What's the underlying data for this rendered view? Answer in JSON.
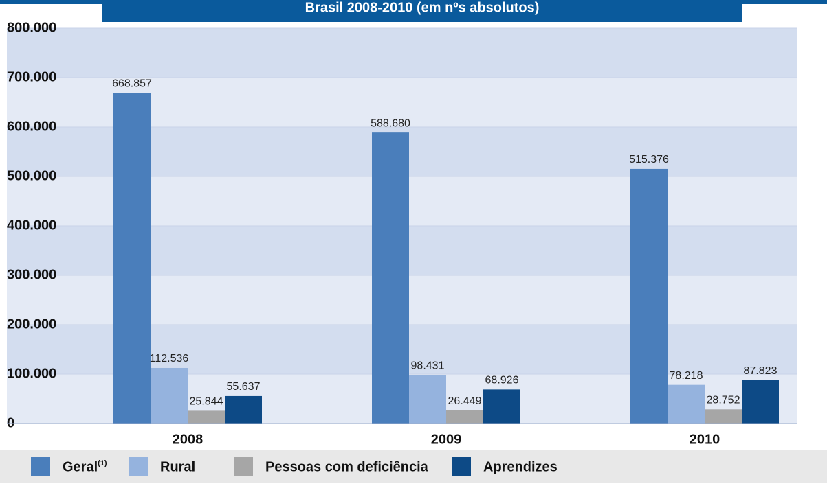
{
  "chart_data": {
    "type": "bar",
    "title": "Brasil 2008-2010 (em nºs absolutos)",
    "categories": [
      "2008",
      "2009",
      "2010"
    ],
    "series": [
      {
        "name": "Geral",
        "note": "(1)",
        "color": "#4a7ebb",
        "values": [
          668857,
          588680,
          515376
        ],
        "value_labels": [
          "668.857",
          "588.680",
          "515.376"
        ]
      },
      {
        "name": "Rural",
        "color": "#95b3de",
        "values": [
          112536,
          98431,
          78218
        ],
        "value_labels": [
          "112.536",
          "98.431",
          "78.218"
        ]
      },
      {
        "name": "Pessoas com deficiência",
        "color": "#a6a6a6",
        "values": [
          25844,
          26449,
          28752
        ],
        "value_labels": [
          "25.844",
          "26.449",
          "28.752"
        ]
      },
      {
        "name": "Aprendizes",
        "color": "#0d4a86",
        "values": [
          55637,
          68926,
          87823
        ],
        "value_labels": [
          "55.637",
          "68.926",
          "87.823"
        ]
      }
    ],
    "ylim": [
      0,
      800000
    ],
    "yticks": [
      0,
      {
        "value": 100000,
        "label": "100.000"
      },
      {
        "value": 200000,
        "label": "200.000"
      },
      {
        "value": 300000,
        "label": "300.000"
      },
      {
        "value": 400000,
        "label": "400.000"
      },
      {
        "value": 500000,
        "label": "500.000"
      },
      {
        "value": 600000,
        "label": "600.000"
      },
      {
        "value": 700000,
        "label": "700.000"
      },
      {
        "value": 800000,
        "label": "800.000"
      }
    ],
    "grid": true
  }
}
